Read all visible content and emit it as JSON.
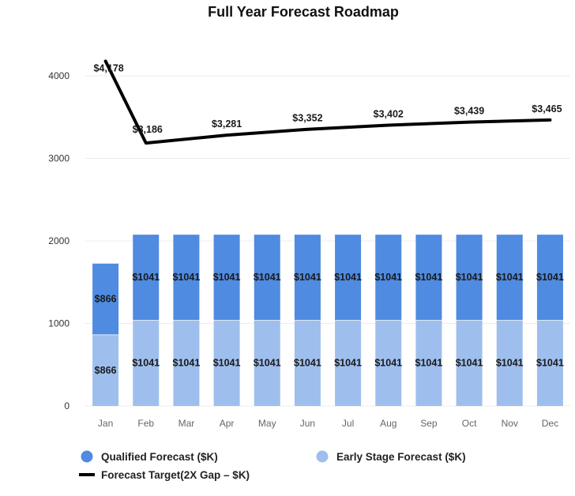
{
  "chart_data": {
    "type": "bar",
    "title": "Full Year Forecast Roadmap",
    "categories": [
      "Jan",
      "Feb",
      "Mar",
      "Apr",
      "May",
      "Jun",
      "Jul",
      "Aug",
      "Sep",
      "Oct",
      "Nov",
      "Dec"
    ],
    "ylim": [
      0,
      4300
    ],
    "yticks": [
      0,
      1000,
      2000,
      3000,
      4000
    ],
    "ytick_labels": [
      "0",
      "1000",
      "2000",
      "3000",
      "4000"
    ],
    "grid": true,
    "legend_position": "bottom",
    "stacked": true,
    "series": [
      {
        "name": "Early Stage Forecast ($K)",
        "kind": "bar",
        "color": "#9ebfee",
        "values": [
          866,
          1041,
          1041,
          1041,
          1041,
          1041,
          1041,
          1041,
          1041,
          1041,
          1041,
          1041
        ],
        "labels": [
          "$866",
          "$1041",
          "$1041",
          "$1041",
          "$1041",
          "$1041",
          "$1041",
          "$1041",
          "$1041",
          "$1041",
          "$1041",
          "$1041"
        ]
      },
      {
        "name": "Qualified Forecast ($K)",
        "kind": "bar",
        "color": "#4f8be0",
        "values": [
          866,
          1041,
          1041,
          1041,
          1041,
          1041,
          1041,
          1041,
          1041,
          1041,
          1041,
          1041
        ],
        "labels": [
          "$866",
          "$1041",
          "$1041",
          "$1041",
          "$1041",
          "$1041",
          "$1041",
          "$1041",
          "$1041",
          "$1041",
          "$1041",
          "$1041"
        ]
      },
      {
        "name": "Forecast Target(2X Gap – $K)",
        "kind": "line",
        "color": "#000000",
        "values": [
          4178,
          3186,
          3281,
          3352,
          3402,
          3439,
          3465
        ],
        "x": [
          "Jan",
          "Feb",
          "Apr",
          "Jun",
          "Aug",
          "Oct",
          "Dec"
        ],
        "labels": [
          "$4,178",
          "$3,186",
          "$3,281",
          "$3,352",
          "$3,402",
          "$3,439",
          "$3,465"
        ]
      }
    ],
    "legend": [
      {
        "label": "Qualified Forecast ($K)",
        "marker": "circle",
        "color": "#4f8be0"
      },
      {
        "label": "Early Stage Forecast ($K)",
        "marker": "circle",
        "color": "#9ebfee"
      },
      {
        "label": "Forecast Target(2X Gap – $K)",
        "marker": "line",
        "color": "#000000"
      }
    ]
  }
}
